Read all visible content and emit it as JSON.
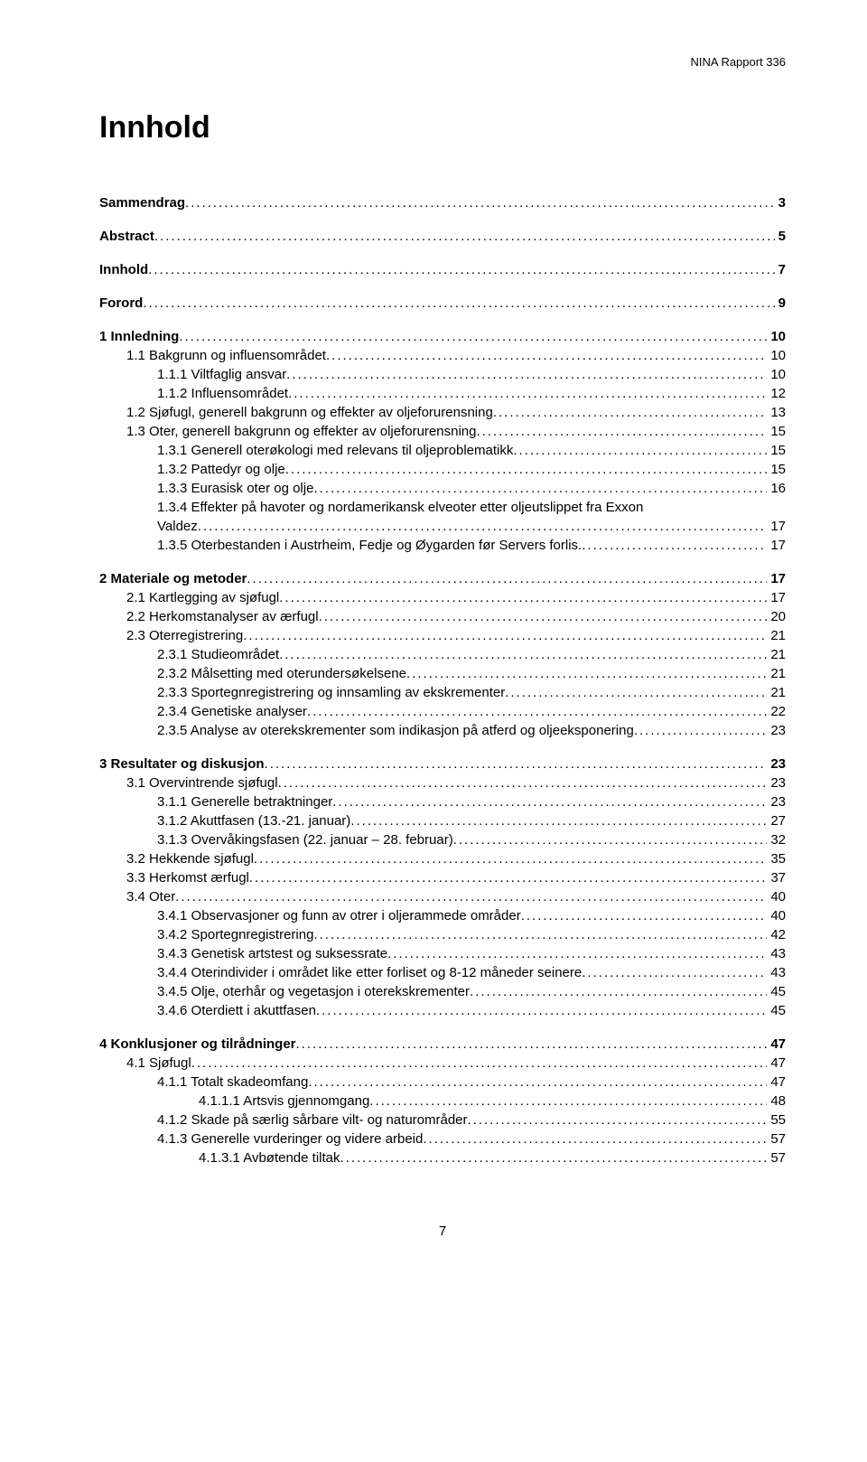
{
  "header": {
    "report": "NINA Rapport 336"
  },
  "title": "Innhold",
  "pageNumber": "7",
  "toc": [
    {
      "label": "Sammendrag",
      "page": "3",
      "bold": true,
      "indent": 0,
      "gap": false
    },
    {
      "label": "Abstract",
      "page": "5",
      "bold": true,
      "indent": 0,
      "gap": true
    },
    {
      "label": "Innhold",
      "page": "7",
      "bold": true,
      "indent": 0,
      "gap": true
    },
    {
      "label": "Forord",
      "page": "9",
      "bold": true,
      "indent": 0,
      "gap": true
    },
    {
      "label": "1 Innledning",
      "page": "10",
      "bold": true,
      "indent": 0,
      "gap": true
    },
    {
      "label": "1.1 Bakgrunn og influensområdet",
      "page": "10",
      "bold": false,
      "indent": 1,
      "gap": false
    },
    {
      "label": "1.1.1 Viltfaglig ansvar",
      "page": "10",
      "bold": false,
      "indent": 2,
      "gap": false
    },
    {
      "label": "1.1.2 Influensområdet",
      "page": "12",
      "bold": false,
      "indent": 2,
      "gap": false
    },
    {
      "label": "1.2 Sjøfugl, generell bakgrunn og effekter av oljeforurensning",
      "page": "13",
      "bold": false,
      "indent": 1,
      "gap": false
    },
    {
      "label": "1.3 Oter, generell bakgrunn og effekter av oljeforurensning",
      "page": "15",
      "bold": false,
      "indent": 1,
      "gap": false
    },
    {
      "label": "1.3.1 Generell oterøkologi med relevans til oljeproblematikk",
      "page": "15",
      "bold": false,
      "indent": 2,
      "gap": false
    },
    {
      "label": "1.3.2 Pattedyr og olje",
      "page": "15",
      "bold": false,
      "indent": 2,
      "gap": false
    },
    {
      "label": "1.3.3 Eurasisk oter og olje",
      "page": "16",
      "bold": false,
      "indent": 2,
      "gap": false
    },
    {
      "label": "1.3.4 Effekter på havoter og nordamerikansk elveoter etter oljeutslippet fra Exxon Valdez",
      "page": "17",
      "bold": false,
      "indent": 2,
      "gap": false,
      "wrap": true
    },
    {
      "label": "1.3.5 Oterbestanden i Austrheim, Fedje og Øygarden før Servers forlis.",
      "page": "17",
      "bold": false,
      "indent": 2,
      "gap": false
    },
    {
      "label": "2 Materiale og metoder",
      "page": "17",
      "bold": true,
      "indent": 0,
      "gap": true
    },
    {
      "label": "2.1 Kartlegging av sjøfugl",
      "page": "17",
      "bold": false,
      "indent": 1,
      "gap": false
    },
    {
      "label": "2.2 Herkomstanalyser av ærfugl",
      "page": "20",
      "bold": false,
      "indent": 1,
      "gap": false
    },
    {
      "label": "2.3 Oterregistrering",
      "page": "21",
      "bold": false,
      "indent": 1,
      "gap": false
    },
    {
      "label": "2.3.1 Studieområdet",
      "page": "21",
      "bold": false,
      "indent": 2,
      "gap": false
    },
    {
      "label": "2.3.2 Målsetting med oterundersøkelsene",
      "page": "21",
      "bold": false,
      "indent": 2,
      "gap": false
    },
    {
      "label": "2.3.3 Sportegnregistrering og innsamling av ekskrementer",
      "page": "21",
      "bold": false,
      "indent": 2,
      "gap": false
    },
    {
      "label": "2.3.4 Genetiske analyser",
      "page": "22",
      "bold": false,
      "indent": 2,
      "gap": false
    },
    {
      "label": "2.3.5 Analyse av oterekskrementer som indikasjon på atferd og oljeeksponering",
      "page": "23",
      "bold": false,
      "indent": 2,
      "gap": false
    },
    {
      "label": "3 Resultater og diskusjon",
      "page": "23",
      "bold": true,
      "indent": 0,
      "gap": true
    },
    {
      "label": "3.1 Overvintrende sjøfugl",
      "page": "23",
      "bold": false,
      "indent": 1,
      "gap": false
    },
    {
      "label": "3.1.1 Generelle betraktninger",
      "page": "23",
      "bold": false,
      "indent": 2,
      "gap": false
    },
    {
      "label": "3.1.2 Akuttfasen (13.-21. januar)",
      "page": "27",
      "bold": false,
      "indent": 2,
      "gap": false
    },
    {
      "label": "3.1.3 Overvåkingsfasen (22. januar – 28. februar)",
      "page": "32",
      "bold": false,
      "indent": 2,
      "gap": false
    },
    {
      "label": "3.2 Hekkende sjøfugl",
      "page": "35",
      "bold": false,
      "indent": 1,
      "gap": false
    },
    {
      "label": "3.3 Herkomst ærfugl",
      "page": "37",
      "bold": false,
      "indent": 1,
      "gap": false
    },
    {
      "label": "3.4 Oter",
      "page": "40",
      "bold": false,
      "indent": 1,
      "gap": false
    },
    {
      "label": "3.4.1 Observasjoner og funn av otrer i oljerammede områder",
      "page": "40",
      "bold": false,
      "indent": 2,
      "gap": false
    },
    {
      "label": "3.4.2 Sportegnregistrering",
      "page": "42",
      "bold": false,
      "indent": 2,
      "gap": false
    },
    {
      "label": "3.4.3 Genetisk artstest og suksessrate",
      "page": "43",
      "bold": false,
      "indent": 2,
      "gap": false
    },
    {
      "label": "3.4.4 Oterindivider i området like etter forliset og 8-12 måneder seinere",
      "page": "43",
      "bold": false,
      "indent": 2,
      "gap": false
    },
    {
      "label": "3.4.5 Olje, oterhår og vegetasjon i oterekskrementer",
      "page": "45",
      "bold": false,
      "indent": 2,
      "gap": false
    },
    {
      "label": "3.4.6 Oterdiett i akuttfasen",
      "page": "45",
      "bold": false,
      "indent": 2,
      "gap": false
    },
    {
      "label": "4 Konklusjoner og tilrådninger",
      "page": "47",
      "bold": true,
      "indent": 0,
      "gap": true
    },
    {
      "label": "4.1 Sjøfugl",
      "page": "47",
      "bold": false,
      "indent": 1,
      "gap": false
    },
    {
      "label": "4.1.1 Totalt skadeomfang",
      "page": "47",
      "bold": false,
      "indent": 2,
      "gap": false
    },
    {
      "label": "4.1.1.1 Artsvis gjennomgang",
      "page": "48",
      "bold": false,
      "indent": 3,
      "gap": false
    },
    {
      "label": "4.1.2 Skade på særlig sårbare vilt- og naturområder",
      "page": "55",
      "bold": false,
      "indent": 2,
      "gap": false
    },
    {
      "label": "4.1.3 Generelle vurderinger og videre arbeid",
      "page": "57",
      "bold": false,
      "indent": 2,
      "gap": false
    },
    {
      "label": "4.1.3.1 Avbøtende tiltak",
      "page": "57",
      "bold": false,
      "indent": 3,
      "gap": false
    }
  ]
}
